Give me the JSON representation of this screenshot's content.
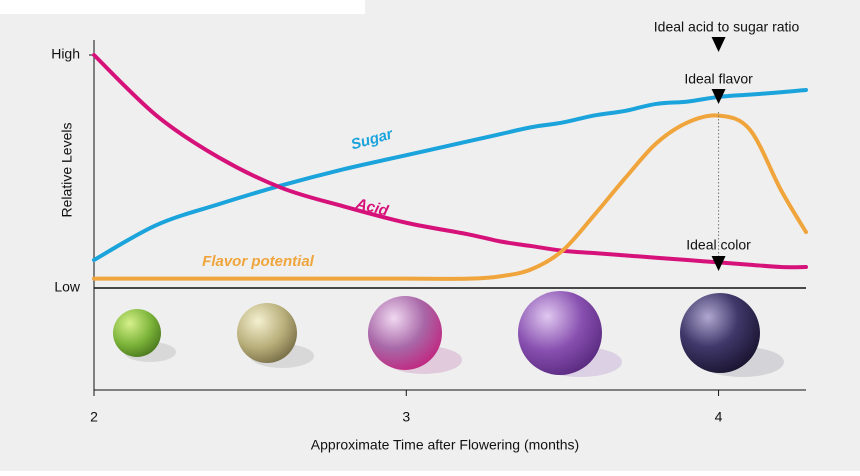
{
  "chart_data": {
    "type": "line",
    "x_label": "Approximate Time after Flowering (months)",
    "y_label": "Relative Levels",
    "x": [
      2,
      2.2,
      2.4,
      2.6,
      2.8,
      3,
      3.2,
      3.3,
      3.4,
      3.5,
      3.6,
      3.7,
      3.8,
      3.9,
      4,
      4.1,
      4.2,
      4.28
    ],
    "series": [
      {
        "name": "Sugar",
        "color": "#1ba3dc",
        "values": [
          12,
          27,
          36,
          44,
          51,
          57,
          63,
          66,
          69,
          71,
          74,
          76,
          79,
          80,
          82,
          83,
          84,
          85
        ]
      },
      {
        "name": "Acid",
        "color": "#d6127a",
        "values": [
          100,
          74,
          56,
          43,
          35,
          28,
          23,
          20,
          18,
          16,
          15,
          14,
          13,
          12,
          11,
          10,
          9,
          9
        ]
      },
      {
        "name": "Flavor potential",
        "color": "#f0a53c",
        "values": [
          4,
          4,
          4,
          4,
          4,
          4,
          4,
          5,
          8,
          16,
          31,
          47,
          62,
          71,
          74,
          68,
          42,
          24
        ]
      }
    ],
    "xlim": [
      2,
      4.28
    ],
    "xticks": [
      2,
      3,
      4
    ],
    "ylim": [
      0,
      100
    ],
    "yticks": [
      {
        "value": 100,
        "label": "High"
      },
      {
        "value": 0,
        "label": "Low"
      }
    ],
    "annotations": [
      {
        "text": "Ideal acid to sugar ratio",
        "x": 4
      },
      {
        "text": "Ideal flavor",
        "x": 4
      },
      {
        "text": "Ideal color",
        "x": 4
      }
    ]
  }
}
